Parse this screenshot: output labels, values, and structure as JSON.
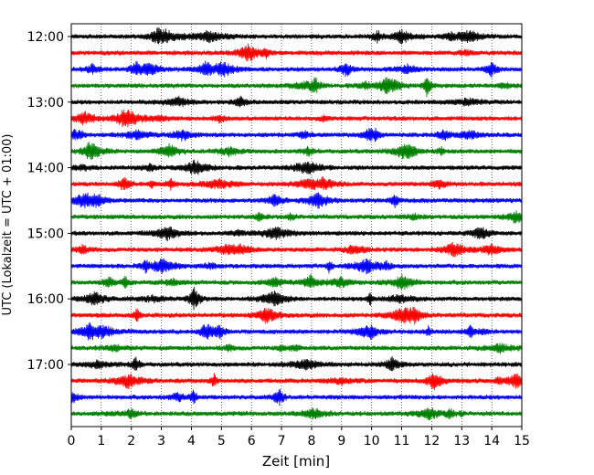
{
  "chart_data": {
    "type": "line",
    "title": "",
    "xlabel": "Zeit  [min]",
    "ylabel": "UTC (Lokalzeit = UTC + 01:00)",
    "xlim": [
      0,
      15
    ],
    "x_ticks": [
      "0",
      "1",
      "2",
      "3",
      "4",
      "5",
      "6",
      "7",
      "8",
      "9",
      "10",
      "11",
      "12",
      "13",
      "14",
      "15"
    ],
    "y_ticks": [
      "12:00",
      "13:00",
      "14:00",
      "15:00",
      "16:00",
      "17:00"
    ],
    "trace_interval_min": 15,
    "trace_count": 24,
    "start_time": "12:00",
    "trace_colors": [
      "#000000",
      "#ff0000",
      "#0000ff",
      "#008000"
    ],
    "grid": "vertical dotted lines at each minute",
    "series": []
  }
}
